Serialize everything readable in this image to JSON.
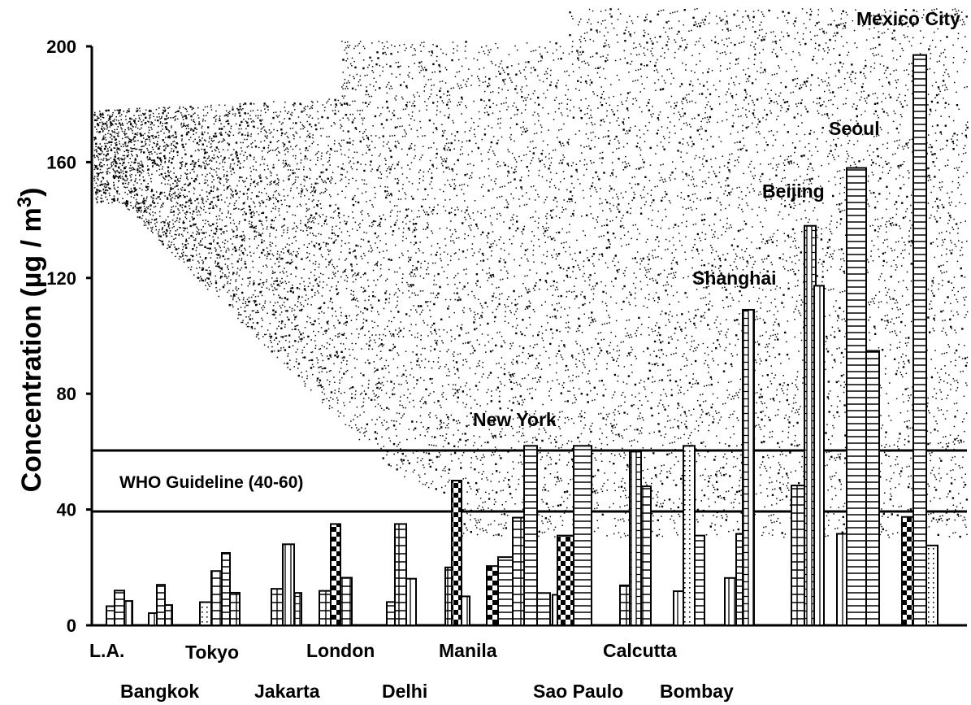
{
  "chart_data": {
    "type": "bar",
    "title": "",
    "ylabel": "Concentration (µg / m³)",
    "ylabel_parts": {
      "main": "Concentration (",
      "mu": "µ",
      "unit": "g / m",
      "sup": "3",
      "close": ")"
    },
    "xlabel": "",
    "ylim": [
      0,
      200
    ],
    "yticks": [
      0,
      40,
      80,
      120,
      160,
      200
    ],
    "grid": false,
    "legend": "none",
    "categories": [
      "L.A.",
      "Bangkok",
      "Tokyo",
      "Jakarta",
      "London",
      "Delhi",
      "Manila",
      "New York",
      "Sao Paulo",
      "Calcutta",
      "Bombay",
      "Shanghai",
      "Beijing",
      "Seoul",
      "Mexico City"
    ],
    "values": [
      12,
      14,
      25,
      28,
      35,
      35,
      50,
      62,
      62,
      60,
      62,
      109,
      138,
      158,
      197
    ],
    "reference_band": {
      "label": "WHO Guideline (40-60)",
      "low": 40,
      "high": 60
    },
    "background": "stippled haze of dots"
  },
  "colors": {
    "ink": "#000000",
    "background": "#ffffff"
  }
}
